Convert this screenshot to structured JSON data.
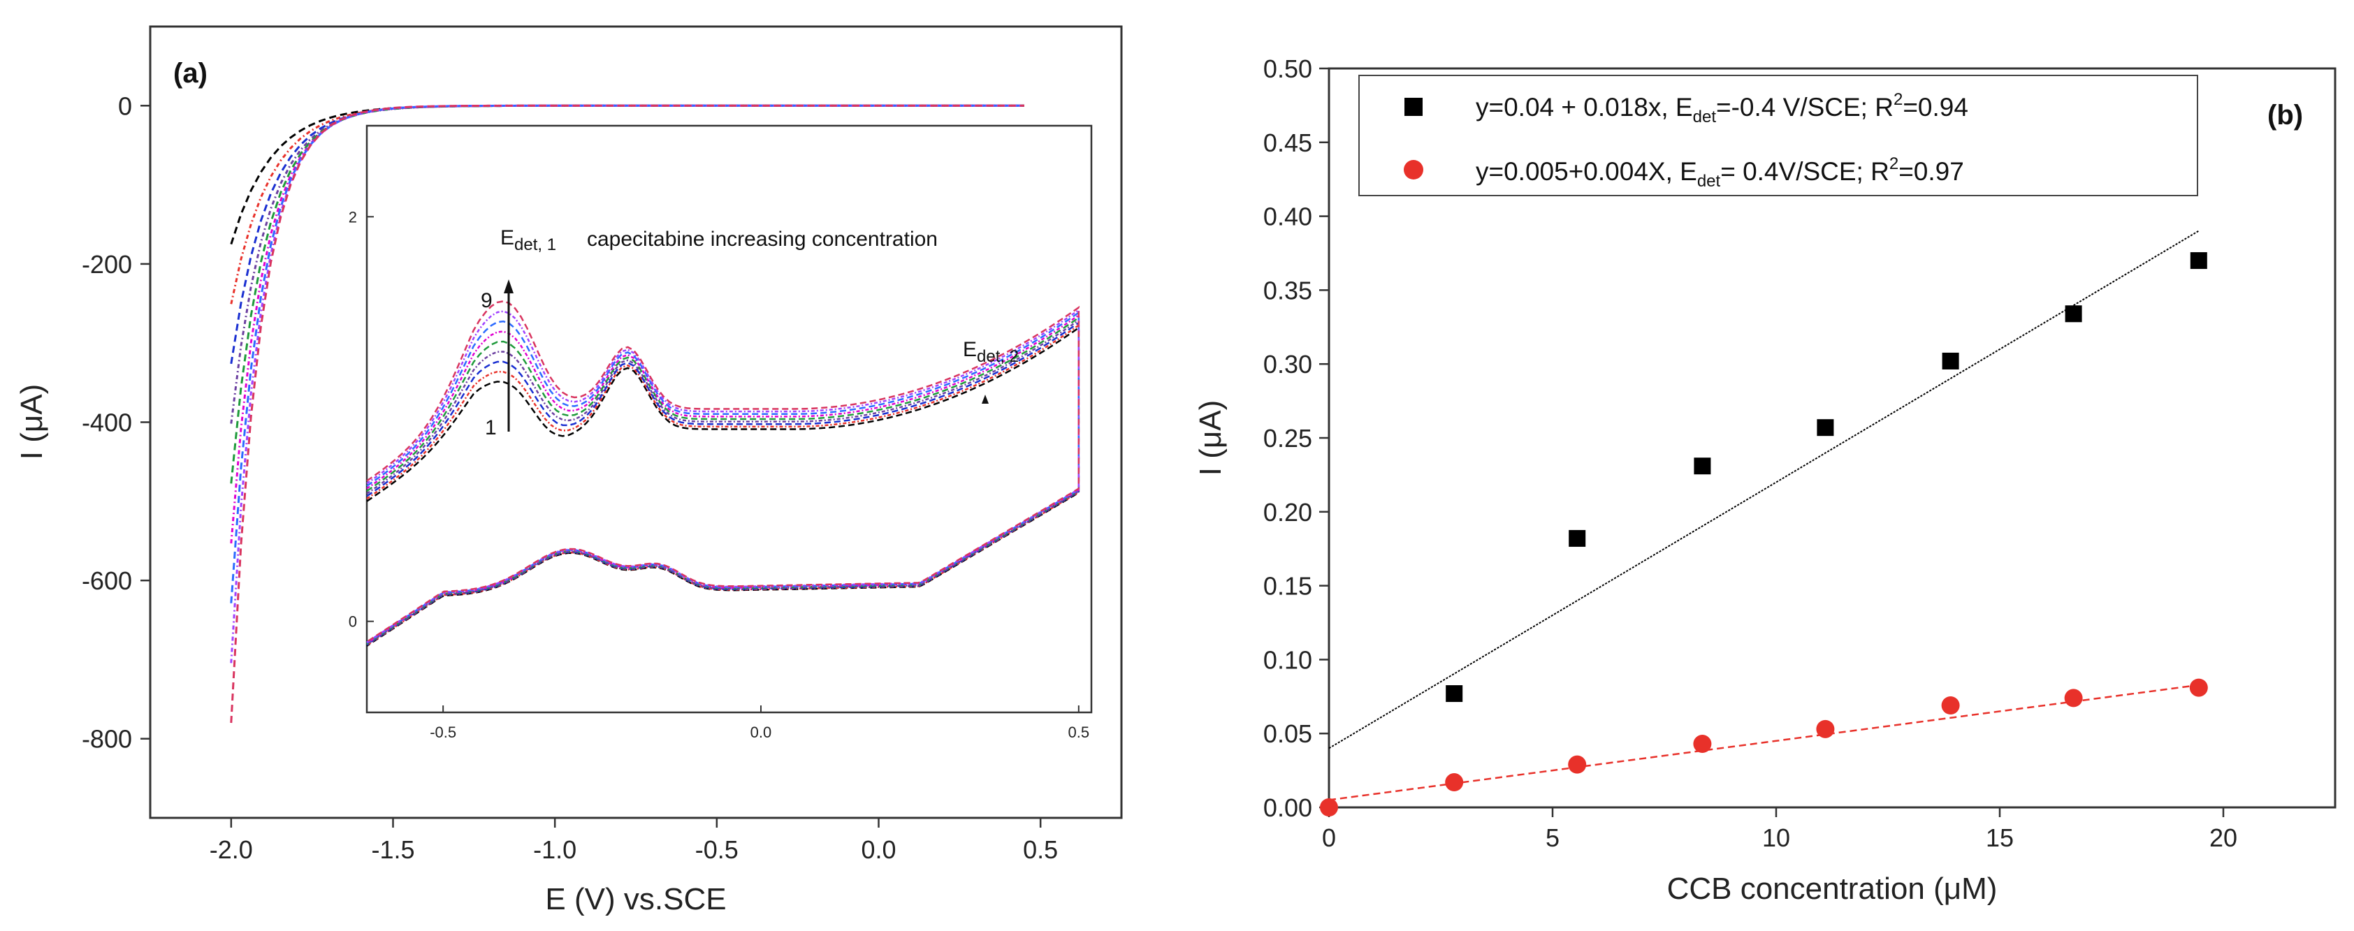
{
  "panel_a": {
    "label": "(a)",
    "xlabel": "E (V) vs.SCE",
    "ylabel": "I (μA)",
    "inset": {
      "annotation": "capecitabine increasing concentration",
      "edet1": "E",
      "edet1_sub": "det, 1",
      "edet2": "E",
      "edet2_sub": "det, 2",
      "label_high": "9",
      "label_low": "1"
    }
  },
  "panel_b": {
    "label": "(b)",
    "xlabel": "CCB concentration (μM)",
    "ylabel": "I (μA)",
    "legend": [
      {
        "pre": "y=0.04 + 0.018x, E",
        "sub": "det",
        "post": "=-0.4 V/SCE;  R",
        "sup": "2",
        "tail": "=0.94"
      },
      {
        "pre": "y=0.005+0.004X, E",
        "sub": "det",
        "post": "= 0.4V/SCE;  R",
        "sup": "2",
        "tail": "=0.97"
      }
    ]
  },
  "chart_data": [
    {
      "type": "line",
      "panel": "a",
      "xlabel": "E (V) vs.SCE",
      "ylabel": "I (μA)",
      "xlim": [
        -2.25,
        0.75
      ],
      "ylim": [
        -900,
        100
      ],
      "xticks": [
        -2.0,
        -1.5,
        -1.0,
        -0.5,
        0.0,
        0.5
      ],
      "xtick_labels": [
        "-2.0",
        "-1.5",
        "-1.0",
        "-0.5",
        "0.0",
        "0.5"
      ],
      "yticks": [
        0,
        -200,
        -400,
        -600,
        -800
      ],
      "ytick_labels": [
        "0",
        "-200",
        "-400",
        "-600",
        "-800"
      ],
      "curve_shape": {
        "x_start": -2.0,
        "y_start_min": -175,
        "y_start_max": -780,
        "plateau_x": 0.45
      },
      "series_colors": [
        "#000000",
        "#e8312a",
        "#1a2fd1",
        "#6b3fa0",
        "#1f9a3b",
        "#e000d0",
        "#2c6bff",
        "#a040ff",
        "#d9345f"
      ],
      "inset": {
        "xlim": [
          -0.62,
          0.52
        ],
        "ylim": [
          -0.45,
          2.45
        ],
        "xticks": [
          -0.5,
          0.0,
          0.5
        ],
        "xtick_labels": [
          "-0.5",
          "0.0",
          "0.5"
        ],
        "yticks": [
          0,
          2
        ],
        "ytick_labels": [
          "0",
          "2"
        ]
      }
    },
    {
      "type": "scatter",
      "panel": "b",
      "xlabel": "CCB concentration (μM)",
      "ylabel": "I (μA)",
      "xlim": [
        0,
        22.5
      ],
      "ylim": [
        0,
        0.5
      ],
      "xticks": [
        0,
        5,
        10,
        15,
        20
      ],
      "xtick_labels": [
        "0",
        "5",
        "10",
        "15",
        "20"
      ],
      "yticks": [
        0,
        0.05,
        0.1,
        0.15,
        0.2,
        0.25,
        0.3,
        0.35,
        0.4,
        0.45,
        0.5
      ],
      "ytick_labels": [
        "0.00",
        "0.05",
        "0.10",
        "0.15",
        "0.20",
        "0.25",
        "0.30",
        "0.35",
        "0.40",
        "0.45",
        "0.50"
      ],
      "series": [
        {
          "marker": "square",
          "color": "#000000",
          "x": [
            2.8,
            5.55,
            8.35,
            11.1,
            13.9,
            16.65,
            19.45
          ],
          "y": [
            0.077,
            0.182,
            0.231,
            0.257,
            0.302,
            0.334,
            0.37
          ],
          "fit": {
            "intercept": 0.04,
            "slope": 0.018
          }
        },
        {
          "marker": "circle",
          "color": "#e8312a",
          "x": [
            0,
            2.8,
            5.55,
            8.35,
            11.1,
            13.9,
            16.65,
            19.45
          ],
          "y": [
            0.0,
            0.017,
            0.029,
            0.043,
            0.053,
            0.069,
            0.074,
            0.081
          ],
          "fit": {
            "intercept": 0.005,
            "slope": 0.004
          }
        }
      ]
    }
  ]
}
